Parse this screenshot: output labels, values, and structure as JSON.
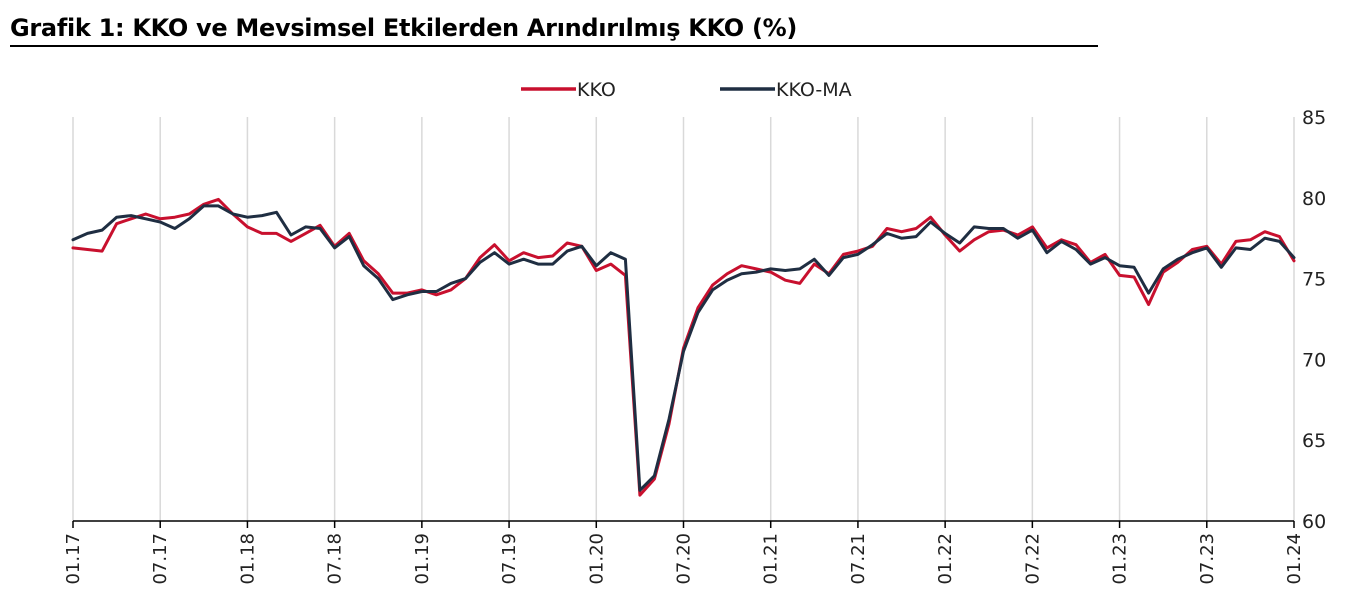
{
  "title": "Grafik 1: KKO ve Mevsimsel Etkilerden Arındırılmış KKO (%)",
  "colors": {
    "kko": "#c8102e",
    "kko_ma": "#1f2e42",
    "grid": "#d9d9d9",
    "axis": "#000000"
  },
  "chart_data": {
    "type": "line",
    "title": "Grafik 1: KKO ve Mevsimsel Etkilerden Arındırılmış KKO (%)",
    "xlabel": "",
    "ylabel": "",
    "ylim": [
      60,
      85
    ],
    "yticks": [
      "60",
      "65",
      "70",
      "75",
      "80",
      "85"
    ],
    "x_tick_labels": [
      "01.17",
      "07.17",
      "01.18",
      "07.18",
      "01.19",
      "07.19",
      "01.20",
      "07.20",
      "01.21",
      "07.21",
      "01.22",
      "07.22",
      "01.23",
      "07.23",
      "01.24"
    ],
    "x_start": "01.17",
    "x_end": "01.24",
    "grid": true,
    "legend_position": "top-center",
    "series": [
      {
        "name": "KKO",
        "color": "#c8102e",
        "values": [
          76.9,
          76.8,
          76.7,
          78.4,
          78.7,
          79.0,
          78.7,
          78.8,
          79.0,
          79.6,
          79.9,
          79.0,
          78.2,
          77.8,
          77.8,
          77.3,
          77.8,
          78.3,
          77.0,
          77.8,
          76.1,
          75.3,
          74.1,
          74.1,
          74.3,
          74.0,
          74.3,
          75.0,
          76.3,
          77.1,
          76.1,
          76.6,
          76.3,
          76.4,
          77.2,
          77.0,
          75.5,
          75.9,
          75.2,
          61.6,
          62.6,
          66.0,
          70.7,
          73.2,
          74.6,
          75.3,
          75.8,
          75.6,
          75.4,
          74.9,
          74.7,
          75.9,
          75.3,
          76.5,
          76.7,
          77.0,
          78.1,
          77.9,
          78.1,
          78.8,
          77.7,
          76.7,
          77.4,
          77.9,
          78.0,
          77.7,
          78.2,
          76.9,
          77.4,
          77.1,
          76.0,
          76.5,
          75.2,
          75.1,
          73.4,
          75.4,
          76.0,
          76.8,
          77.0,
          75.9,
          77.3,
          77.4,
          77.9,
          77.6,
          76.1
        ]
      },
      {
        "name": "KKO-MA",
        "color": "#1f2e42",
        "values": [
          77.4,
          77.8,
          78.0,
          78.8,
          78.9,
          78.7,
          78.5,
          78.1,
          78.7,
          79.5,
          79.5,
          79.0,
          78.8,
          78.9,
          79.1,
          77.7,
          78.2,
          78.1,
          76.9,
          77.6,
          75.8,
          75.0,
          73.7,
          74.0,
          74.2,
          74.2,
          74.7,
          75.0,
          76.0,
          76.6,
          75.9,
          76.2,
          75.9,
          75.9,
          76.7,
          77.0,
          75.8,
          76.6,
          76.2,
          61.9,
          62.8,
          66.3,
          70.5,
          72.9,
          74.3,
          74.9,
          75.3,
          75.4,
          75.6,
          75.5,
          75.6,
          76.2,
          75.2,
          76.3,
          76.5,
          77.1,
          77.8,
          77.5,
          77.6,
          78.5,
          77.8,
          77.2,
          78.2,
          78.1,
          78.1,
          77.5,
          78.0,
          76.6,
          77.3,
          76.8,
          75.9,
          76.3,
          75.8,
          75.7,
          74.1,
          75.6,
          76.2,
          76.6,
          76.9,
          75.7,
          76.9,
          76.8,
          77.5,
          77.3,
          76.3
        ]
      }
    ]
  }
}
